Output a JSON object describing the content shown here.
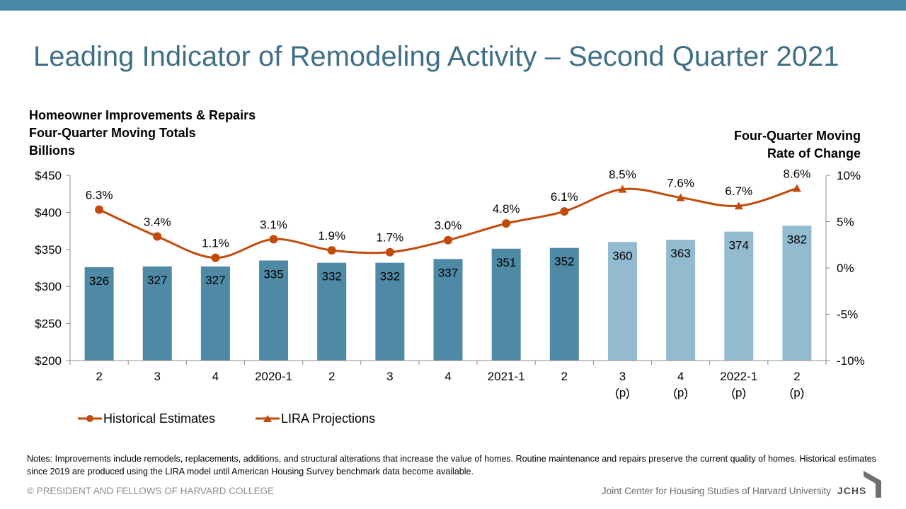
{
  "title": "Leading Indicator of Remodeling Activity – Second Quarter 2021",
  "left_axis_label": [
    "Homeowner Improvements & Repairs",
    "Four-Quarter Moving Totals",
    "Billions"
  ],
  "right_axis_label": [
    "Four-Quarter Moving",
    "Rate of Change"
  ],
  "legend": {
    "historical": "Historical Estimates",
    "projections": "LIRA Projections"
  },
  "notes": "Notes: Improvements include remodels, replacements, additions, and structural alterations that increase the value of homes. Routine maintenance and repairs preserve the current quality of homes. Historical estimates since 2019 are produced using the LIRA model until American Housing Survey benchmark data become available.",
  "footer": {
    "copyright": "© PRESIDENT AND FELLOWS OF HARVARD COLLEGE",
    "org": "Joint Center for Housing Studies of Harvard University",
    "logo": "JCHS"
  },
  "colors": {
    "accent": "#4a86a6",
    "title": "#3f6f86",
    "bar_hist": "#4e89a5",
    "bar_proj": "#93bbcf",
    "line": "#c24b0b"
  },
  "chart_data": {
    "type": "bar+line",
    "categories": [
      [
        "2"
      ],
      [
        "3"
      ],
      [
        "4"
      ],
      [
        "2020-1"
      ],
      [
        "2"
      ],
      [
        "3"
      ],
      [
        "4"
      ],
      [
        "2021-1"
      ],
      [
        "2"
      ],
      [
        "3",
        "(p)"
      ],
      [
        "4",
        "(p)"
      ],
      [
        "2022-1",
        "(p)"
      ],
      [
        "2",
        "(p)"
      ]
    ],
    "bars": {
      "values": [
        326,
        327,
        327,
        335,
        332,
        332,
        337,
        351,
        352,
        360,
        363,
        374,
        382
      ],
      "projected": [
        false,
        false,
        false,
        false,
        false,
        false,
        false,
        false,
        false,
        true,
        true,
        true,
        true
      ]
    },
    "line": {
      "values": [
        6.3,
        3.4,
        1.1,
        3.1,
        1.9,
        1.7,
        3.0,
        4.8,
        6.1,
        8.5,
        7.6,
        6.7,
        8.6
      ],
      "labels": [
        "6.3%",
        "3.4%",
        "1.1%",
        "3.1%",
        "1.9%",
        "1.7%",
        "3.0%",
        "4.8%",
        "6.1%",
        "8.5%",
        "7.6%",
        "6.7%",
        "8.6%"
      ],
      "projected": [
        false,
        false,
        false,
        false,
        false,
        false,
        false,
        false,
        false,
        true,
        true,
        true,
        true
      ]
    },
    "left_axis": {
      "min": 200,
      "max": 450,
      "ticks": [
        450,
        400,
        350,
        300,
        250,
        200
      ],
      "tick_labels": [
        "$450",
        "$400",
        "$350",
        "$300",
        "$250",
        "$200"
      ]
    },
    "right_axis": {
      "min": -10,
      "max": 10,
      "ticks": [
        10,
        5,
        0,
        -5,
        -10
      ],
      "tick_labels": [
        "10%",
        "5%",
        "0%",
        "-5%",
        "-10%"
      ]
    },
    "grid": false,
    "legend_position": "bottom-left"
  }
}
